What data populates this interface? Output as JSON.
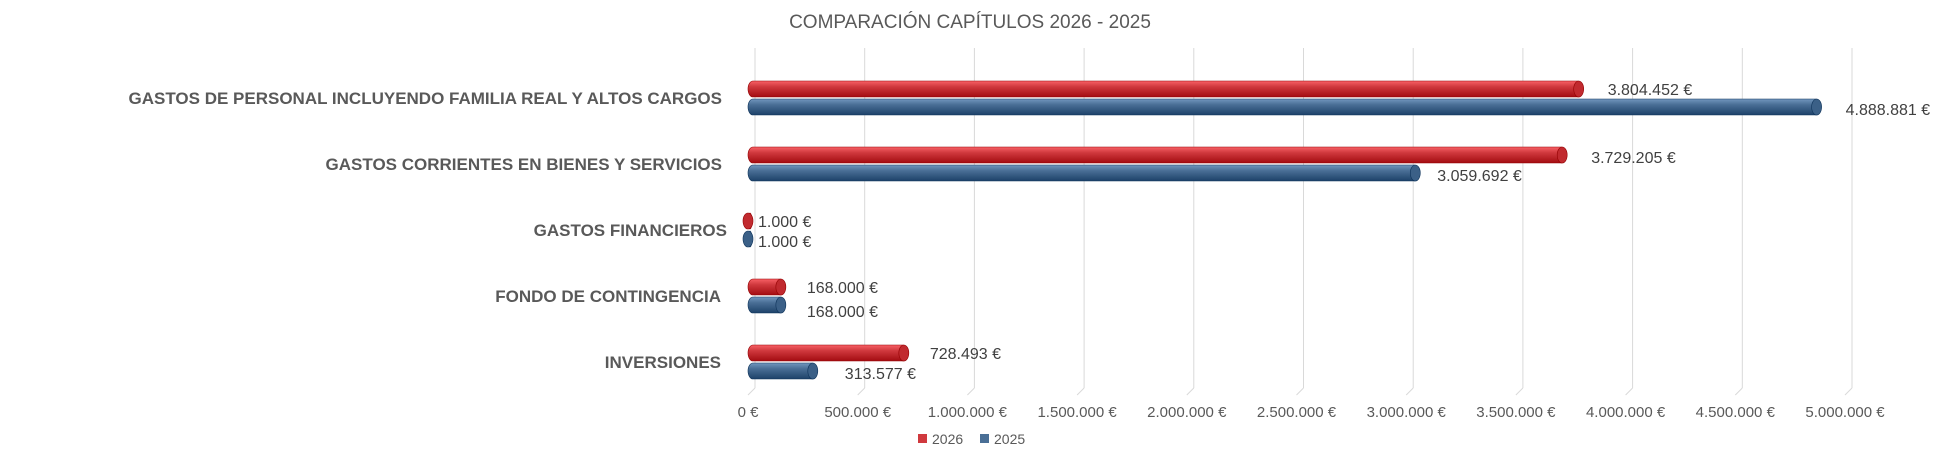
{
  "chart_data": {
    "type": "bar",
    "orientation": "horizontal",
    "title": "COMPARACIÓN CAPÍTULOS 2026 - 2025",
    "categories": [
      "GASTOS DE PERSONAL INCLUYENDO FAMILIA REAL Y ALTOS CARGOS",
      "GASTOS CORRIENTES EN BIENES Y SERVICIOS",
      "GASTOS FINANCIEROS",
      "FONDO DE CONTINGENCIA",
      "INVERSIONES"
    ],
    "series": [
      {
        "name": "2026",
        "color": "#d0393e",
        "values": [
          3804452,
          3729205,
          1000,
          168000,
          728493
        ],
        "labels": [
          "3.804.452 €",
          "3.729.205 €",
          "1.000 €",
          "168.000 €",
          "728.493 €"
        ]
      },
      {
        "name": "2025",
        "color": "#4a6f96",
        "values": [
          4888881,
          3059692,
          1000,
          168000,
          313577
        ],
        "labels": [
          "4.888.881 €",
          "3.059.692 €",
          "1.000 €",
          "168.000 €",
          "313.577 €"
        ]
      }
    ],
    "xlim": [
      0,
      5000000
    ],
    "x_ticks": [
      0,
      500000,
      1000000,
      1500000,
      2000000,
      2500000,
      3000000,
      3500000,
      4000000,
      4500000,
      5000000
    ],
    "x_tick_labels": [
      "0 €",
      "500.000 €",
      "1.000.000 €",
      "1.500.000 €",
      "2.000.000 €",
      "2.500.000 €",
      "3.000.000 €",
      "3.500.000 €",
      "4.000.000 €",
      "4.500.000 €",
      "5.000.000 €"
    ],
    "grid": true,
    "legend_position": "bottom-center",
    "style": "3d-cylinder"
  }
}
